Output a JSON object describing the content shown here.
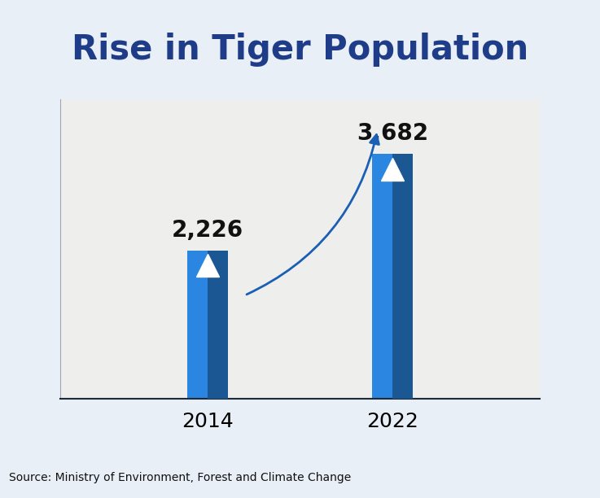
{
  "chart_data": {
    "type": "bar",
    "title": "Rise in Tiger Population",
    "categories": [
      "2014",
      "2022"
    ],
    "values": [
      2226,
      3682
    ],
    "value_labels": [
      "2,226",
      "3,682"
    ],
    "data_labels": true,
    "color": "#2a86e0",
    "ylim": [
      0,
      4500
    ],
    "yticks": [],
    "tick_labels": "x",
    "source": "Source: Ministry of Environment, Forest and Climate Change"
  }
}
